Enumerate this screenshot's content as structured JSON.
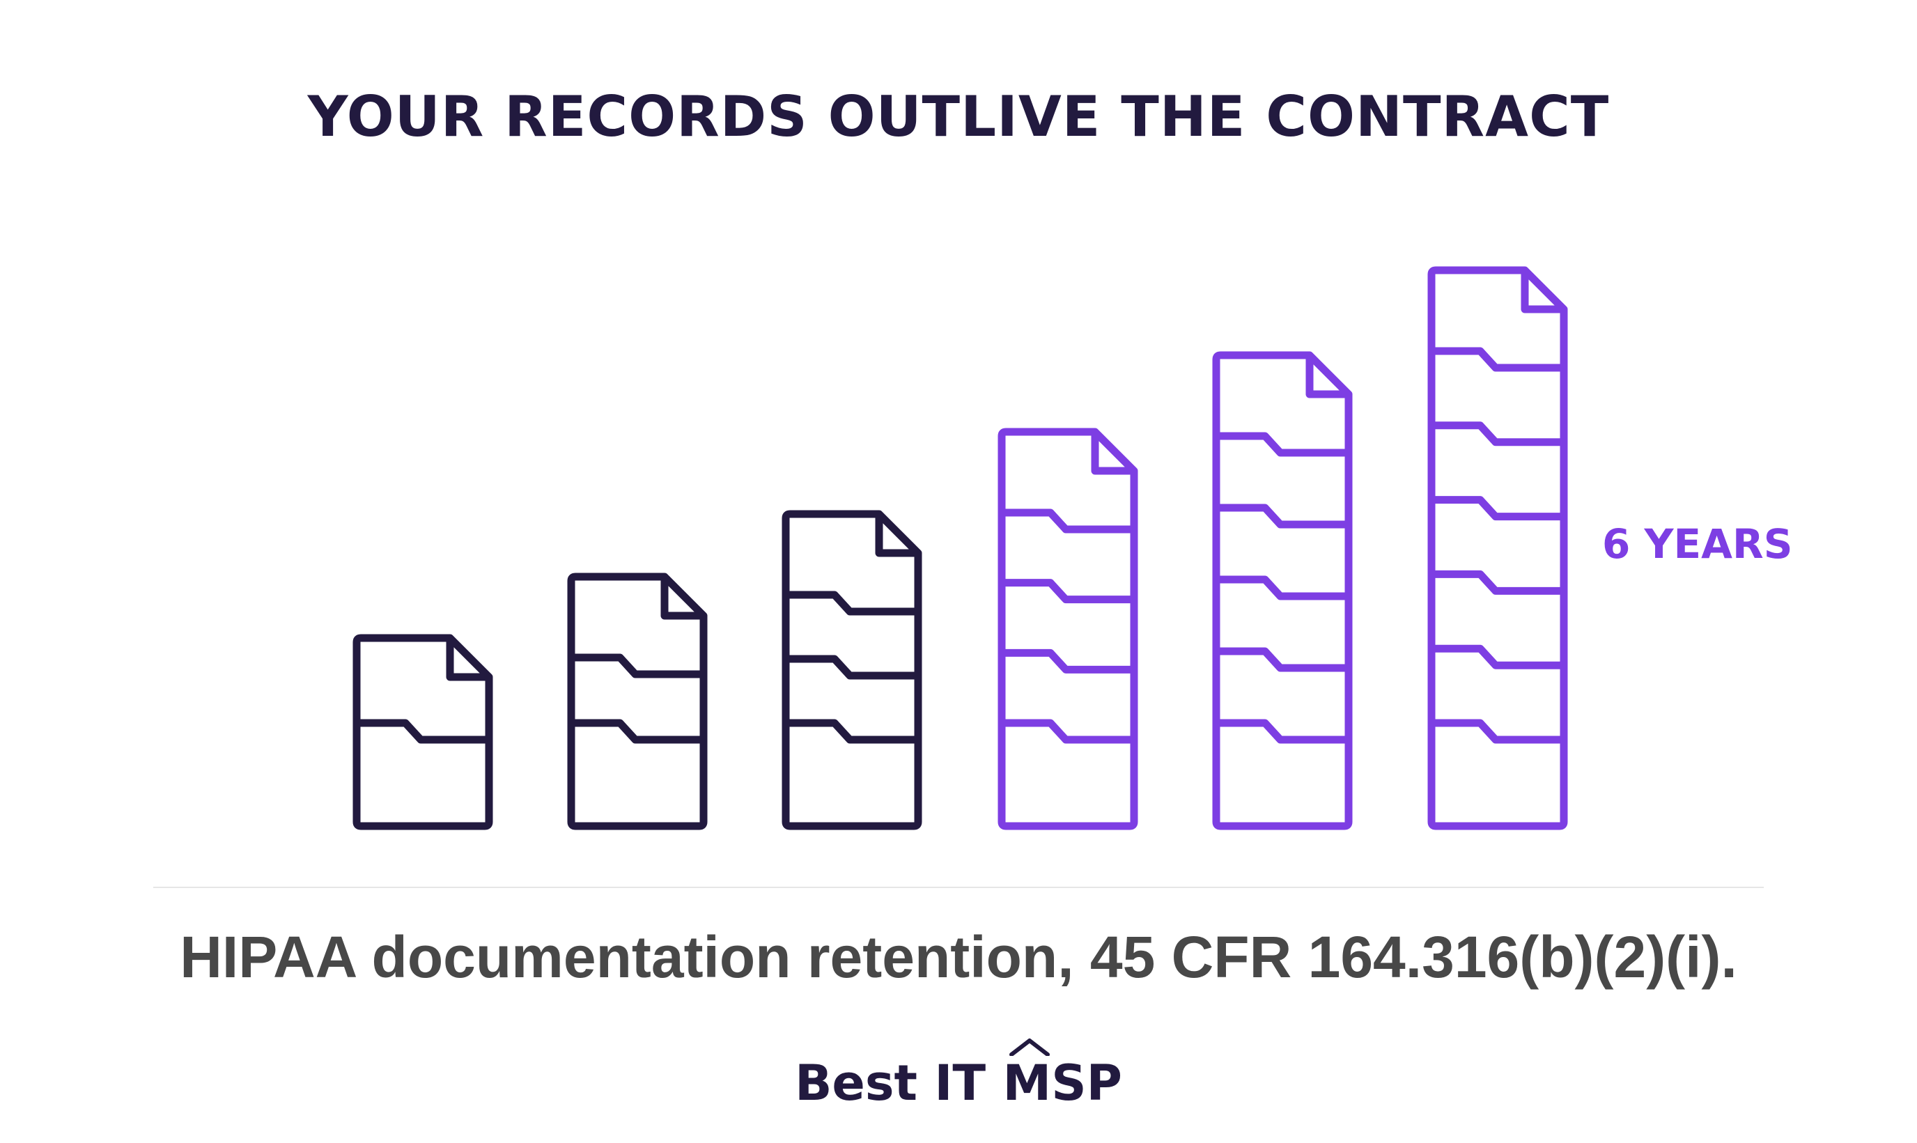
{
  "headline": "YOUR RECORDS OUTLIVE THE CONTRACT",
  "years_label": "6 YEARS",
  "citation": "HIPAA documentation retention, 45 CFR 164.316(b)(2)(i).",
  "brand": "Best IT MSP",
  "colors": {
    "dark": "#221a3f",
    "accent": "#7d3ee3",
    "citation_text": "#484848"
  },
  "stacks": [
    {
      "folders": 1,
      "style": "dark"
    },
    {
      "folders": 2,
      "style": "dark"
    },
    {
      "folders": 3,
      "style": "dark"
    },
    {
      "folders": 4,
      "style": "accent"
    },
    {
      "folders": 5,
      "style": "accent"
    },
    {
      "folders": 6,
      "style": "accent"
    }
  ]
}
